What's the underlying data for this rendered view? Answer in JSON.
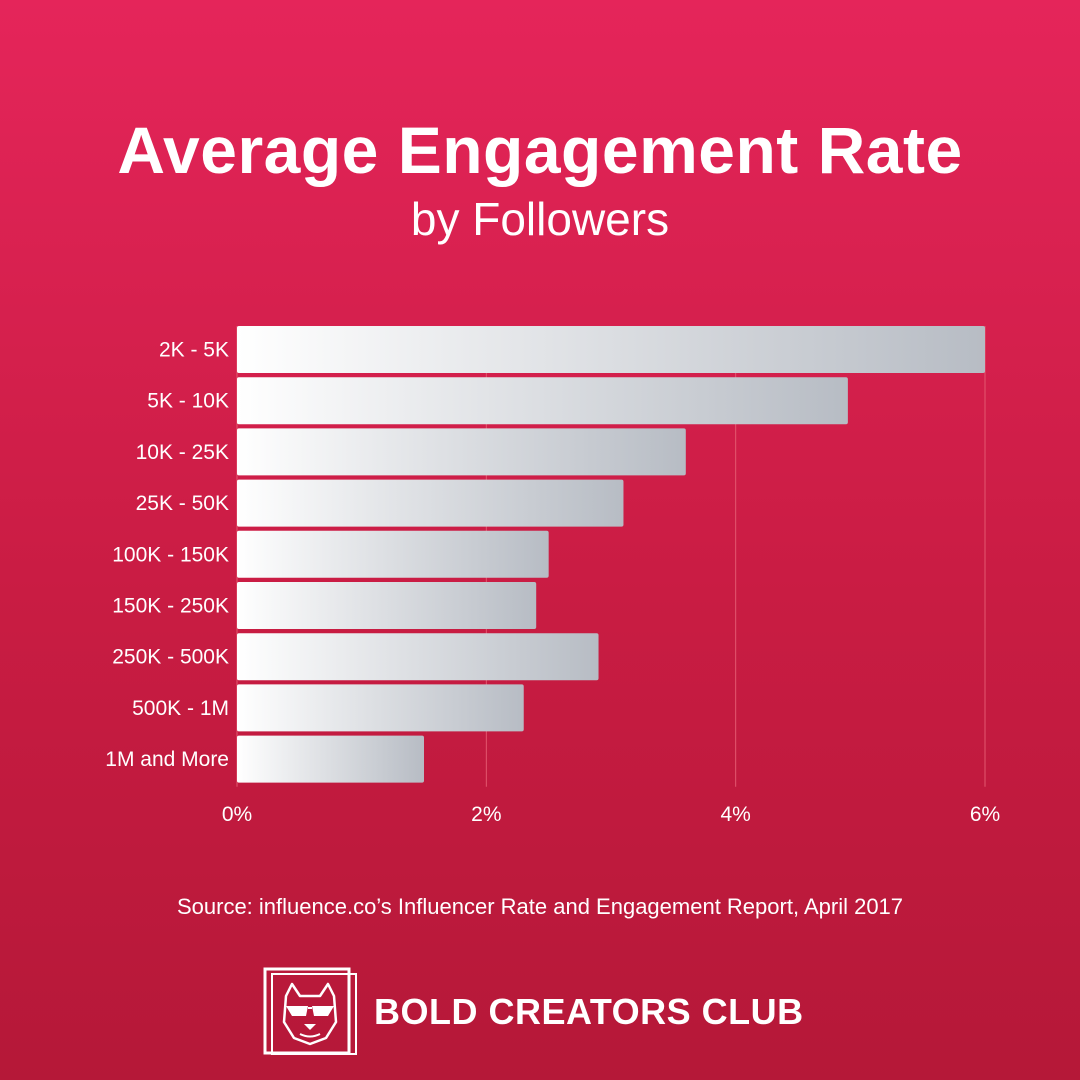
{
  "header": {
    "title": "Average Engagement Rate",
    "subtitle": "by Followers"
  },
  "chart_data": {
    "type": "bar",
    "orientation": "horizontal",
    "title": "Average Engagement Rate",
    "subtitle": "by Followers",
    "categories": [
      "2K - 5K",
      "5K - 10K",
      "10K - 25K",
      "25K - 50K",
      "100K - 150K",
      "150K - 250K",
      "250K - 500K",
      "500K - 1M",
      "1M and More"
    ],
    "values": [
      6.0,
      4.9,
      3.6,
      3.1,
      2.5,
      2.4,
      2.9,
      2.3,
      1.5
    ],
    "xlim": [
      0,
      6
    ],
    "xticks": [
      0,
      2,
      4,
      6
    ],
    "xtick_labels": [
      "0%",
      "2%",
      "4%",
      "6%"
    ],
    "xlabel": "",
    "ylabel": "",
    "grid": true,
    "colors": {
      "bar_start": "#ffffff",
      "bar_end": "#b7bcc4",
      "gridline": "#e3576f"
    }
  },
  "footer": {
    "source": "Source: influence.co’s Influencer Rate and Engagement Report, April 2017",
    "brand_name": "BOLD CREATORS CLUB",
    "brand_logo_icon": "bulldog-sunglasses-icon"
  }
}
